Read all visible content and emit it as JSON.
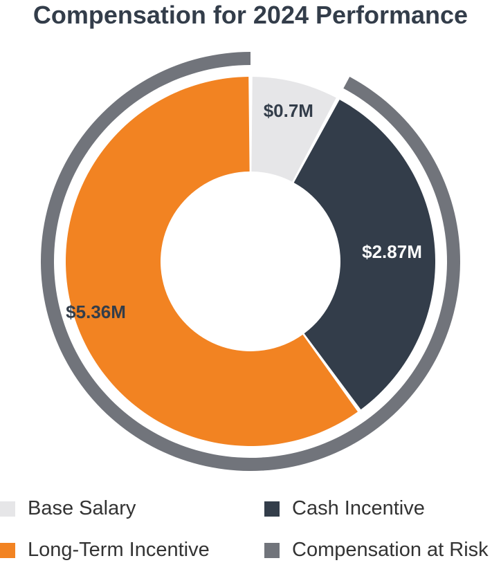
{
  "chart_data": {
    "type": "donut",
    "title": "Compensation for 2024 Performance",
    "series": [
      {
        "name": "Base Salary",
        "value": 0.7,
        "label": "$0.7M",
        "color": "#e6e6e8",
        "label_color": "#333d4a"
      },
      {
        "name": "Cash Incentive",
        "value": 2.87,
        "label": "$2.87M",
        "color": "#333d4a",
        "label_color": "#ffffff"
      },
      {
        "name": "Long-Term Incentive",
        "value": 5.36,
        "label": "$5.36M",
        "color": "#f28322",
        "label_color": "#333d4a"
      }
    ],
    "outer_ring": {
      "name": "Compensation at Risk",
      "components": [
        "Cash Incentive",
        "Long-Term Incentive"
      ],
      "color": "#71747b"
    },
    "legend": [
      {
        "label": "Base Salary",
        "color": "#e6e6e8"
      },
      {
        "label": "Cash Incentive",
        "color": "#333d4a"
      },
      {
        "label": "Long-Term Incentive",
        "color": "#f28322"
      },
      {
        "label": "Compensation at Risk",
        "color": "#71747b"
      }
    ],
    "legend_position": "bottom"
  },
  "colors": {
    "title": "#333d4a",
    "legend_text": "#333333"
  }
}
